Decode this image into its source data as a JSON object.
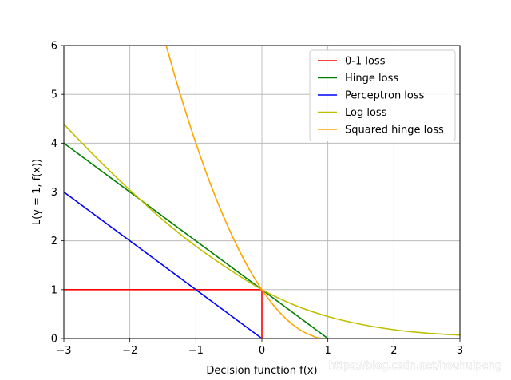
{
  "chart_data": {
    "type": "line",
    "xlabel": "Decision function f(x)",
    "ylabel": "L(y = 1, f(x))",
    "xlim": [
      -3,
      3
    ],
    "ylim": [
      0,
      6
    ],
    "xticks": [
      "−3",
      "−2",
      "−1",
      "0",
      "1",
      "2",
      "3"
    ],
    "yticks": [
      "0",
      "1",
      "2",
      "3",
      "4",
      "5",
      "6"
    ],
    "grid": true,
    "legend_position": "top-right",
    "series": [
      {
        "name": "0-1 loss",
        "color": "#ff0000",
        "x": [
          -3,
          0,
          0,
          3
        ],
        "y": [
          1,
          1,
          0,
          0
        ]
      },
      {
        "name": "Hinge loss",
        "color": "#008000",
        "x": [
          -3,
          1,
          3
        ],
        "y": [
          4,
          0,
          0
        ]
      },
      {
        "name": "Perceptron loss",
        "color": "#0000ff",
        "x": [
          -3,
          0,
          3
        ],
        "y": [
          3,
          0,
          0
        ]
      },
      {
        "name": "Log loss",
        "color": "#bfbf00",
        "x": [
          -3,
          -2.5,
          -2,
          -1.5,
          -1,
          -0.5,
          0,
          0.5,
          1,
          1.5,
          2,
          2.5,
          3
        ],
        "y": [
          4.39,
          3.69,
          3.04,
          2.43,
          1.89,
          1.42,
          1.0,
          0.68,
          0.45,
          0.29,
          0.18,
          0.11,
          0.07
        ]
      },
      {
        "name": "Squared hinge loss",
        "color": "#ffa500",
        "x": [
          -1.45,
          -1.25,
          -1.0,
          -0.75,
          -0.5,
          -0.25,
          0,
          0.25,
          0.5,
          0.75,
          1,
          2,
          3
        ],
        "y": [
          6.0,
          5.06,
          4.0,
          3.06,
          2.25,
          1.56,
          1.0,
          0.5625,
          0.25,
          0.0625,
          0,
          0,
          0
        ]
      }
    ]
  },
  "watermark": "https://blog.csdn.net/houhuipeng"
}
